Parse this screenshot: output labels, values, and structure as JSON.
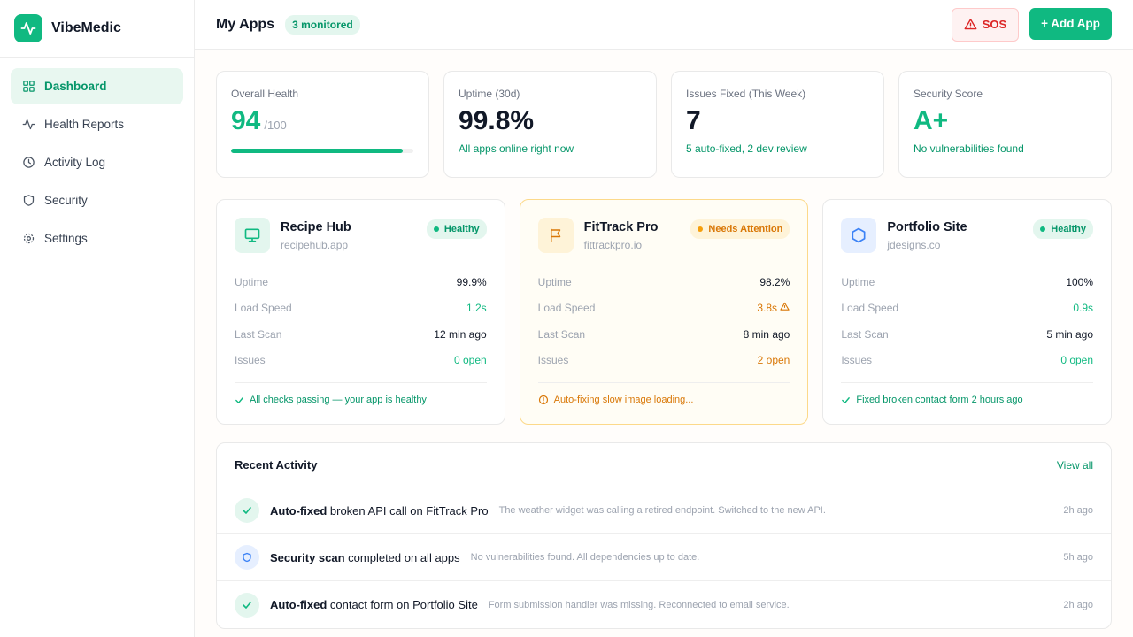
{
  "brand": {
    "name": "VibeMedic",
    "logo_icon": "pulse-icon",
    "accent": "#10b981"
  },
  "sidebar": {
    "items": [
      {
        "label": "Dashboard",
        "icon": "grid-icon",
        "active": true
      },
      {
        "label": "Health Reports",
        "icon": "pulse-icon",
        "active": false
      },
      {
        "label": "Activity Log",
        "icon": "clock-icon",
        "active": false
      },
      {
        "label": "Security",
        "icon": "shield-icon",
        "active": false
      },
      {
        "label": "Settings",
        "icon": "gear-icon",
        "active": false
      }
    ]
  },
  "header": {
    "title": "My Apps",
    "badge": "3 monitored",
    "sos_label": "SOS",
    "add_label": "+ Add App"
  },
  "stats": [
    {
      "label": "Overall Health",
      "value": "94",
      "suffix": "/100",
      "progress": 0.94
    },
    {
      "label": "Uptime (30d)",
      "value": "99.8%",
      "sub": "All apps online right now"
    },
    {
      "label": "Issues Fixed (This Week)",
      "value": "7",
      "sub": "5 auto-fixed, 2 dev review"
    },
    {
      "label": "Security Score",
      "value": "A+",
      "sub": "No vulnerabilities found"
    }
  ],
  "apps": [
    {
      "name": "Recipe Hub",
      "domain": "recipehub.app",
      "icon": "monitor-icon",
      "status": "Healthy",
      "metrics": [
        {
          "label": "Uptime",
          "value": "99.9%"
        },
        {
          "label": "Load Speed",
          "value": "1.2s"
        },
        {
          "label": "Last Scan",
          "value": "12 min ago"
        },
        {
          "label": "Issues",
          "value": "0 open"
        }
      ],
      "footer": "All checks passing — your app is healthy"
    },
    {
      "name": "FitTrack Pro",
      "domain": "fittrackpro.io",
      "icon": "flag-icon",
      "status": "Needs Attention",
      "metrics": [
        {
          "label": "Uptime",
          "value": "98.2%"
        },
        {
          "label": "Load Speed",
          "value": "3.8s"
        },
        {
          "label": "Last Scan",
          "value": "8 min ago"
        },
        {
          "label": "Issues",
          "value": "2 open"
        }
      ],
      "footer": "Auto-fixing slow image loading..."
    },
    {
      "name": "Portfolio Site",
      "domain": "jdesigns.co",
      "icon": "hexagon-icon",
      "status": "Healthy",
      "metrics": [
        {
          "label": "Uptime",
          "value": "100%"
        },
        {
          "label": "Load Speed",
          "value": "0.9s"
        },
        {
          "label": "Last Scan",
          "value": "5 min ago"
        },
        {
          "label": "Issues",
          "value": "0 open"
        }
      ],
      "footer": "Fixed broken contact form 2 hours ago"
    }
  ],
  "activity": {
    "title": "Recent Activity",
    "view_all": "View all",
    "items": [
      {
        "icon": "check-icon",
        "bold": "Auto-fixed",
        "text": " broken API call on FitTrack Pro",
        "desc": "The weather widget was calling a retired endpoint. Switched to the new API.",
        "time": "2h ago"
      },
      {
        "icon": "shield-icon",
        "bold": "Security scan",
        "text": " completed on all apps",
        "desc": "No vulnerabilities found. All dependencies up to date.",
        "time": "5h ago"
      },
      {
        "icon": "check-icon",
        "bold": "Auto-fixed",
        "text": " contact form on Portfolio Site",
        "desc": "Form submission handler was missing. Reconnected to email service.",
        "time": "2h ago"
      }
    ]
  }
}
